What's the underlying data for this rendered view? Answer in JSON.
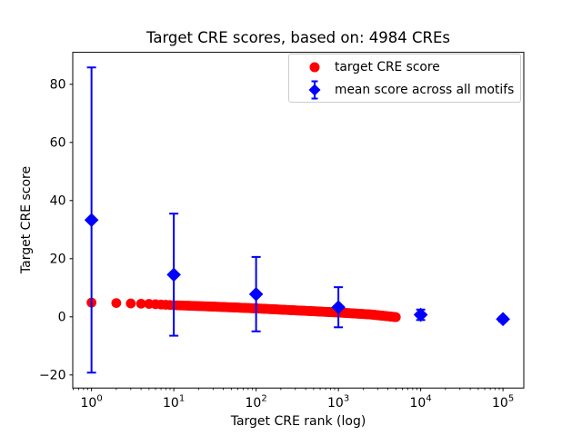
{
  "title": "Target CRE scores, based on: 4984 CREs",
  "chart_data": {
    "type": "scatter",
    "title": "Target CRE scores, based on: 4984 CREs",
    "xlabel": "Target CRE rank (log)",
    "ylabel": "Target CRE score",
    "x_scale": "log",
    "grid": false,
    "legend_position": "upper right",
    "n_cres": 4984,
    "xlim_log10": [
      -0.228,
      5.253
    ],
    "ylim": [
      -24.5,
      91.0
    ],
    "yticks": [
      -20,
      0,
      20,
      40,
      60,
      80
    ],
    "ytick_labels": [
      "−20",
      "0",
      "20",
      "40",
      "60",
      "80"
    ],
    "xtick_exponents": [
      0,
      1,
      2,
      3,
      4,
      5
    ],
    "xtick_base": "10",
    "series": [
      {
        "name": "target CRE score",
        "marker": "circle",
        "color": "#ff0000",
        "rank_range": [
          1,
          4984
        ],
        "curve_log10rank_vs_score": [
          [
            0,
            4.9
          ],
          [
            0.301,
            4.75
          ],
          [
            0.477,
            4.6
          ],
          [
            0.699,
            4.45
          ],
          [
            1.0,
            4.0
          ],
          [
            1.5,
            3.5
          ],
          [
            2.0,
            2.9
          ],
          [
            2.5,
            2.2
          ],
          [
            3.0,
            1.5
          ],
          [
            3.4,
            0.8
          ],
          [
            3.6976,
            -0.1
          ]
        ]
      },
      {
        "name": "mean score across all motifs",
        "marker": "diamond",
        "color": "#0000ff",
        "points": [
          {
            "rank": 1,
            "mean": 33.3,
            "err": 52.5
          },
          {
            "rank": 10,
            "mean": 14.5,
            "err": 21.0
          },
          {
            "rank": 100,
            "mean": 7.8,
            "err": 12.8
          },
          {
            "rank": 1000,
            "mean": 3.3,
            "err": 6.9
          },
          {
            "rank": 10000,
            "mean": 0.7,
            "err": 1.8
          },
          {
            "rank": 100000,
            "mean": -0.8,
            "err": 0.8
          }
        ]
      }
    ]
  }
}
